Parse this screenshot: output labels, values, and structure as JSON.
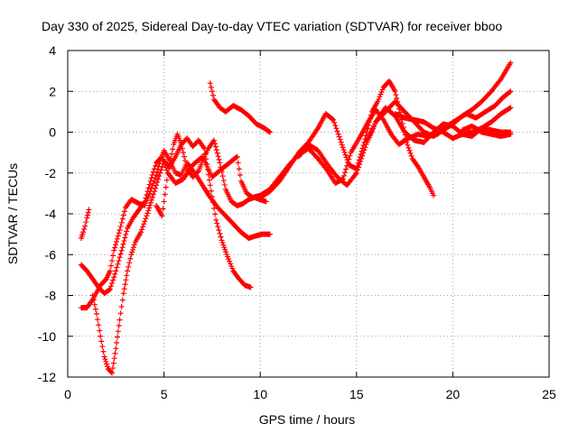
{
  "chart_data": {
    "type": "scatter",
    "title": "Day 330 of 2025, Sidereal Day-to-day VTEC variation (SDTVAR) for receiver bboo",
    "xlabel": "GPS time / hours",
    "ylabel": "SDTVAR / TECUs",
    "xlim": [
      0,
      25
    ],
    "ylim": [
      -12,
      4
    ],
    "x_ticks": [
      0,
      5,
      10,
      15,
      20,
      25
    ],
    "y_ticks": [
      -12,
      -10,
      -8,
      -6,
      -4,
      -2,
      0,
      2,
      4
    ],
    "grid": true,
    "marker": "+",
    "color": "#ff0000",
    "series": [
      {
        "x": [
          0.7,
          0.8,
          0.9,
          1.0,
          1.1
        ],
        "y": [
          -5.2,
          -4.9,
          -4.6,
          -4.2,
          -3.8
        ]
      },
      {
        "x": [
          0.7,
          1.0,
          1.3,
          1.7,
          2.0,
          2.2,
          2.4,
          2.7,
          3.0,
          3.3,
          3.7,
          4.0,
          4.3,
          4.6,
          4.8,
          5.0,
          5.3,
          5.6,
          5.9,
          6.2,
          6.6,
          7.0,
          7.4,
          7.8,
          8.2,
          8.6,
          9.0,
          9.4,
          9.7,
          10.1,
          10.5
        ],
        "y": [
          -8.6,
          -8.6,
          -8.2,
          -7.5,
          -7.2,
          -6.8,
          -5.8,
          -4.8,
          -3.7,
          -3.3,
          -3.5,
          -3.6,
          -2.9,
          -2.1,
          -1.4,
          -0.9,
          -1.4,
          -2.0,
          -2.1,
          -1.5,
          -2.0,
          -2.6,
          -3.2,
          -3.7,
          -4.1,
          -4.5,
          -4.9,
          -5.2,
          -5.1,
          -5.0,
          -5.0
        ]
      },
      {
        "x": [
          0.7,
          1.0,
          1.3,
          1.6,
          1.9,
          2.2,
          2.5,
          2.8,
          3.1,
          3.4,
          3.7,
          4.0,
          4.3,
          4.6,
          4.9,
          5.2,
          5.6,
          6.0,
          6.5,
          7.0,
          7.5,
          8.0,
          8.4,
          8.8,
          9.0,
          9.3,
          9.6,
          10.0,
          10.5,
          11.0,
          11.5,
          12.0,
          12.5,
          13.0,
          13.5,
          13.9,
          14.3,
          14.7,
          15.2,
          15.6,
          16.0,
          16.4,
          16.8,
          17.2,
          17.7,
          18.2,
          18.7,
          19.2,
          19.7,
          20.2,
          20.7,
          21.2,
          21.7,
          22.2,
          22.6,
          23.0
        ],
        "y": [
          -6.5,
          -6.8,
          -7.2,
          -7.6,
          -7.9,
          -7.7,
          -6.8,
          -5.8,
          -4.7,
          -4.2,
          -3.8,
          -3.4,
          -2.4,
          -1.5,
          -1.2,
          -2.0,
          -2.5,
          -2.3,
          -1.6,
          -1.2,
          -2.2,
          -1.8,
          -1.5,
          -1.2,
          -2.4,
          -3.0,
          -3.2,
          -3.1,
          -2.8,
          -2.2,
          -1.6,
          -1.1,
          -0.8,
          -1.3,
          -1.9,
          -2.5,
          -2.3,
          -1.0,
          -0.2,
          0.5,
          1.1,
          0.6,
          -0.1,
          -0.6,
          -0.3,
          -0.1,
          -0.2,
          -0.1,
          0.3,
          0.6,
          0.9,
          0.7,
          1.0,
          1.3,
          1.7,
          2.0
        ]
      },
      {
        "x": [
          1.3,
          1.5,
          1.7,
          1.9,
          2.1,
          2.3,
          2.5,
          2.7,
          2.9,
          3.1,
          3.3,
          3.5,
          3.8,
          4.1,
          4.4,
          4.7,
          5.0,
          5.3,
          5.6,
          5.9,
          6.2,
          6.5,
          6.8,
          7.1,
          7.4,
          7.7,
          8.0,
          8.3,
          8.6,
          8.9,
          9.2,
          9.5
        ],
        "y": [
          -8.0,
          -8.9,
          -10.0,
          -11.0,
          -11.6,
          -11.8,
          -10.6,
          -9.2,
          -7.9,
          -6.8,
          -6.0,
          -5.4,
          -4.9,
          -4.1,
          -3.2,
          -2.3,
          -1.4,
          -1.7,
          -1.2,
          -0.6,
          -0.3,
          -0.7,
          -0.4,
          -0.8,
          -2.6,
          -4.3,
          -5.3,
          -6.1,
          -6.8,
          -7.2,
          -7.5,
          -7.6
        ]
      },
      {
        "x": [
          4.6,
          4.9,
          5.2,
          5.5,
          5.7,
          5.9,
          6.2,
          6.5,
          6.8,
          7.0,
          7.3,
          7.6,
          7.9,
          8.2,
          8.5,
          8.8,
          9.1,
          9.4,
          9.7,
          10.0,
          10.3
        ],
        "y": [
          -3.6,
          -4.1,
          -2.0,
          -0.6,
          -0.1,
          -0.6,
          -1.8,
          -2.2,
          -1.9,
          -1.4,
          -0.8,
          -0.4,
          -1.5,
          -2.8,
          -3.4,
          -3.6,
          -3.5,
          -3.3,
          -3.2,
          -3.3,
          -3.4
        ]
      },
      {
        "x": [
          7.4,
          7.6,
          7.9,
          8.2,
          8.6,
          9.0,
          9.4,
          9.8,
          10.2,
          10.5
        ],
        "y": [
          2.4,
          1.6,
          1.2,
          1.0,
          1.3,
          1.1,
          0.8,
          0.4,
          0.2,
          0.0
        ]
      },
      {
        "x": [
          10.0,
          10.5,
          11.0,
          11.5,
          12.0,
          12.5,
          13.0,
          13.4,
          13.8,
          14.2,
          14.6,
          15.0,
          15.4,
          15.8,
          16.1,
          16.4,
          16.7,
          17.0,
          17.3,
          17.6,
          17.9,
          18.2,
          18.5,
          18.8,
          19.0
        ],
        "y": [
          -3.2,
          -2.9,
          -2.4,
          -1.7,
          -1.0,
          -0.5,
          0.2,
          0.9,
          0.6,
          -0.5,
          -1.6,
          -1.8,
          -0.5,
          1.0,
          1.5,
          2.2,
          2.5,
          2.0,
          0.8,
          -0.5,
          -1.3,
          -1.7,
          -2.2,
          -2.7,
          -3.1
        ]
      },
      {
        "x": [
          12.0,
          12.5,
          13.0,
          13.5,
          14.0,
          14.5,
          15.0,
          15.5,
          16.0,
          16.5,
          17.0,
          17.5,
          18.0,
          18.5,
          19.0,
          19.5,
          20.0,
          20.5,
          21.0,
          21.5,
          22.0,
          22.5,
          23.0
        ],
        "y": [
          -1.2,
          -0.6,
          -0.9,
          -1.6,
          -2.2,
          -2.6,
          -2.0,
          -0.6,
          0.5,
          1.2,
          0.8,
          0.0,
          -0.4,
          -0.5,
          0.0,
          0.4,
          0.3,
          -0.1,
          -0.2,
          0.2,
          0.5,
          0.9,
          1.2
        ]
      },
      {
        "x": [
          15.5,
          16.0,
          16.5,
          17.0,
          17.5,
          18.0,
          18.5,
          19.0,
          19.5,
          20.0,
          20.5,
          21.0,
          21.5,
          22.0,
          22.5,
          23.0
        ],
        "y": [
          -0.5,
          0.5,
          1.0,
          1.5,
          1.0,
          0.5,
          0.0,
          -0.2,
          0.1,
          0.4,
          0.8,
          1.1,
          1.5,
          2.0,
          2.6,
          3.4
        ]
      },
      {
        "x": [
          17.0,
          17.5,
          18.0,
          18.5,
          19.0,
          19.5,
          20.0,
          20.5,
          21.0,
          21.5,
          22.0,
          22.5,
          23.0
        ],
        "y": [
          0.9,
          0.7,
          0.6,
          0.5,
          0.2,
          0.0,
          -0.3,
          -0.1,
          0.0,
          0.2,
          0.1,
          0.0,
          0.0
        ]
      },
      {
        "x": [
          20.5,
          21.0,
          21.5,
          22.0,
          22.5,
          23.0
        ],
        "y": [
          0.1,
          0.3,
          0.0,
          -0.1,
          -0.2,
          -0.1
        ]
      }
    ]
  }
}
